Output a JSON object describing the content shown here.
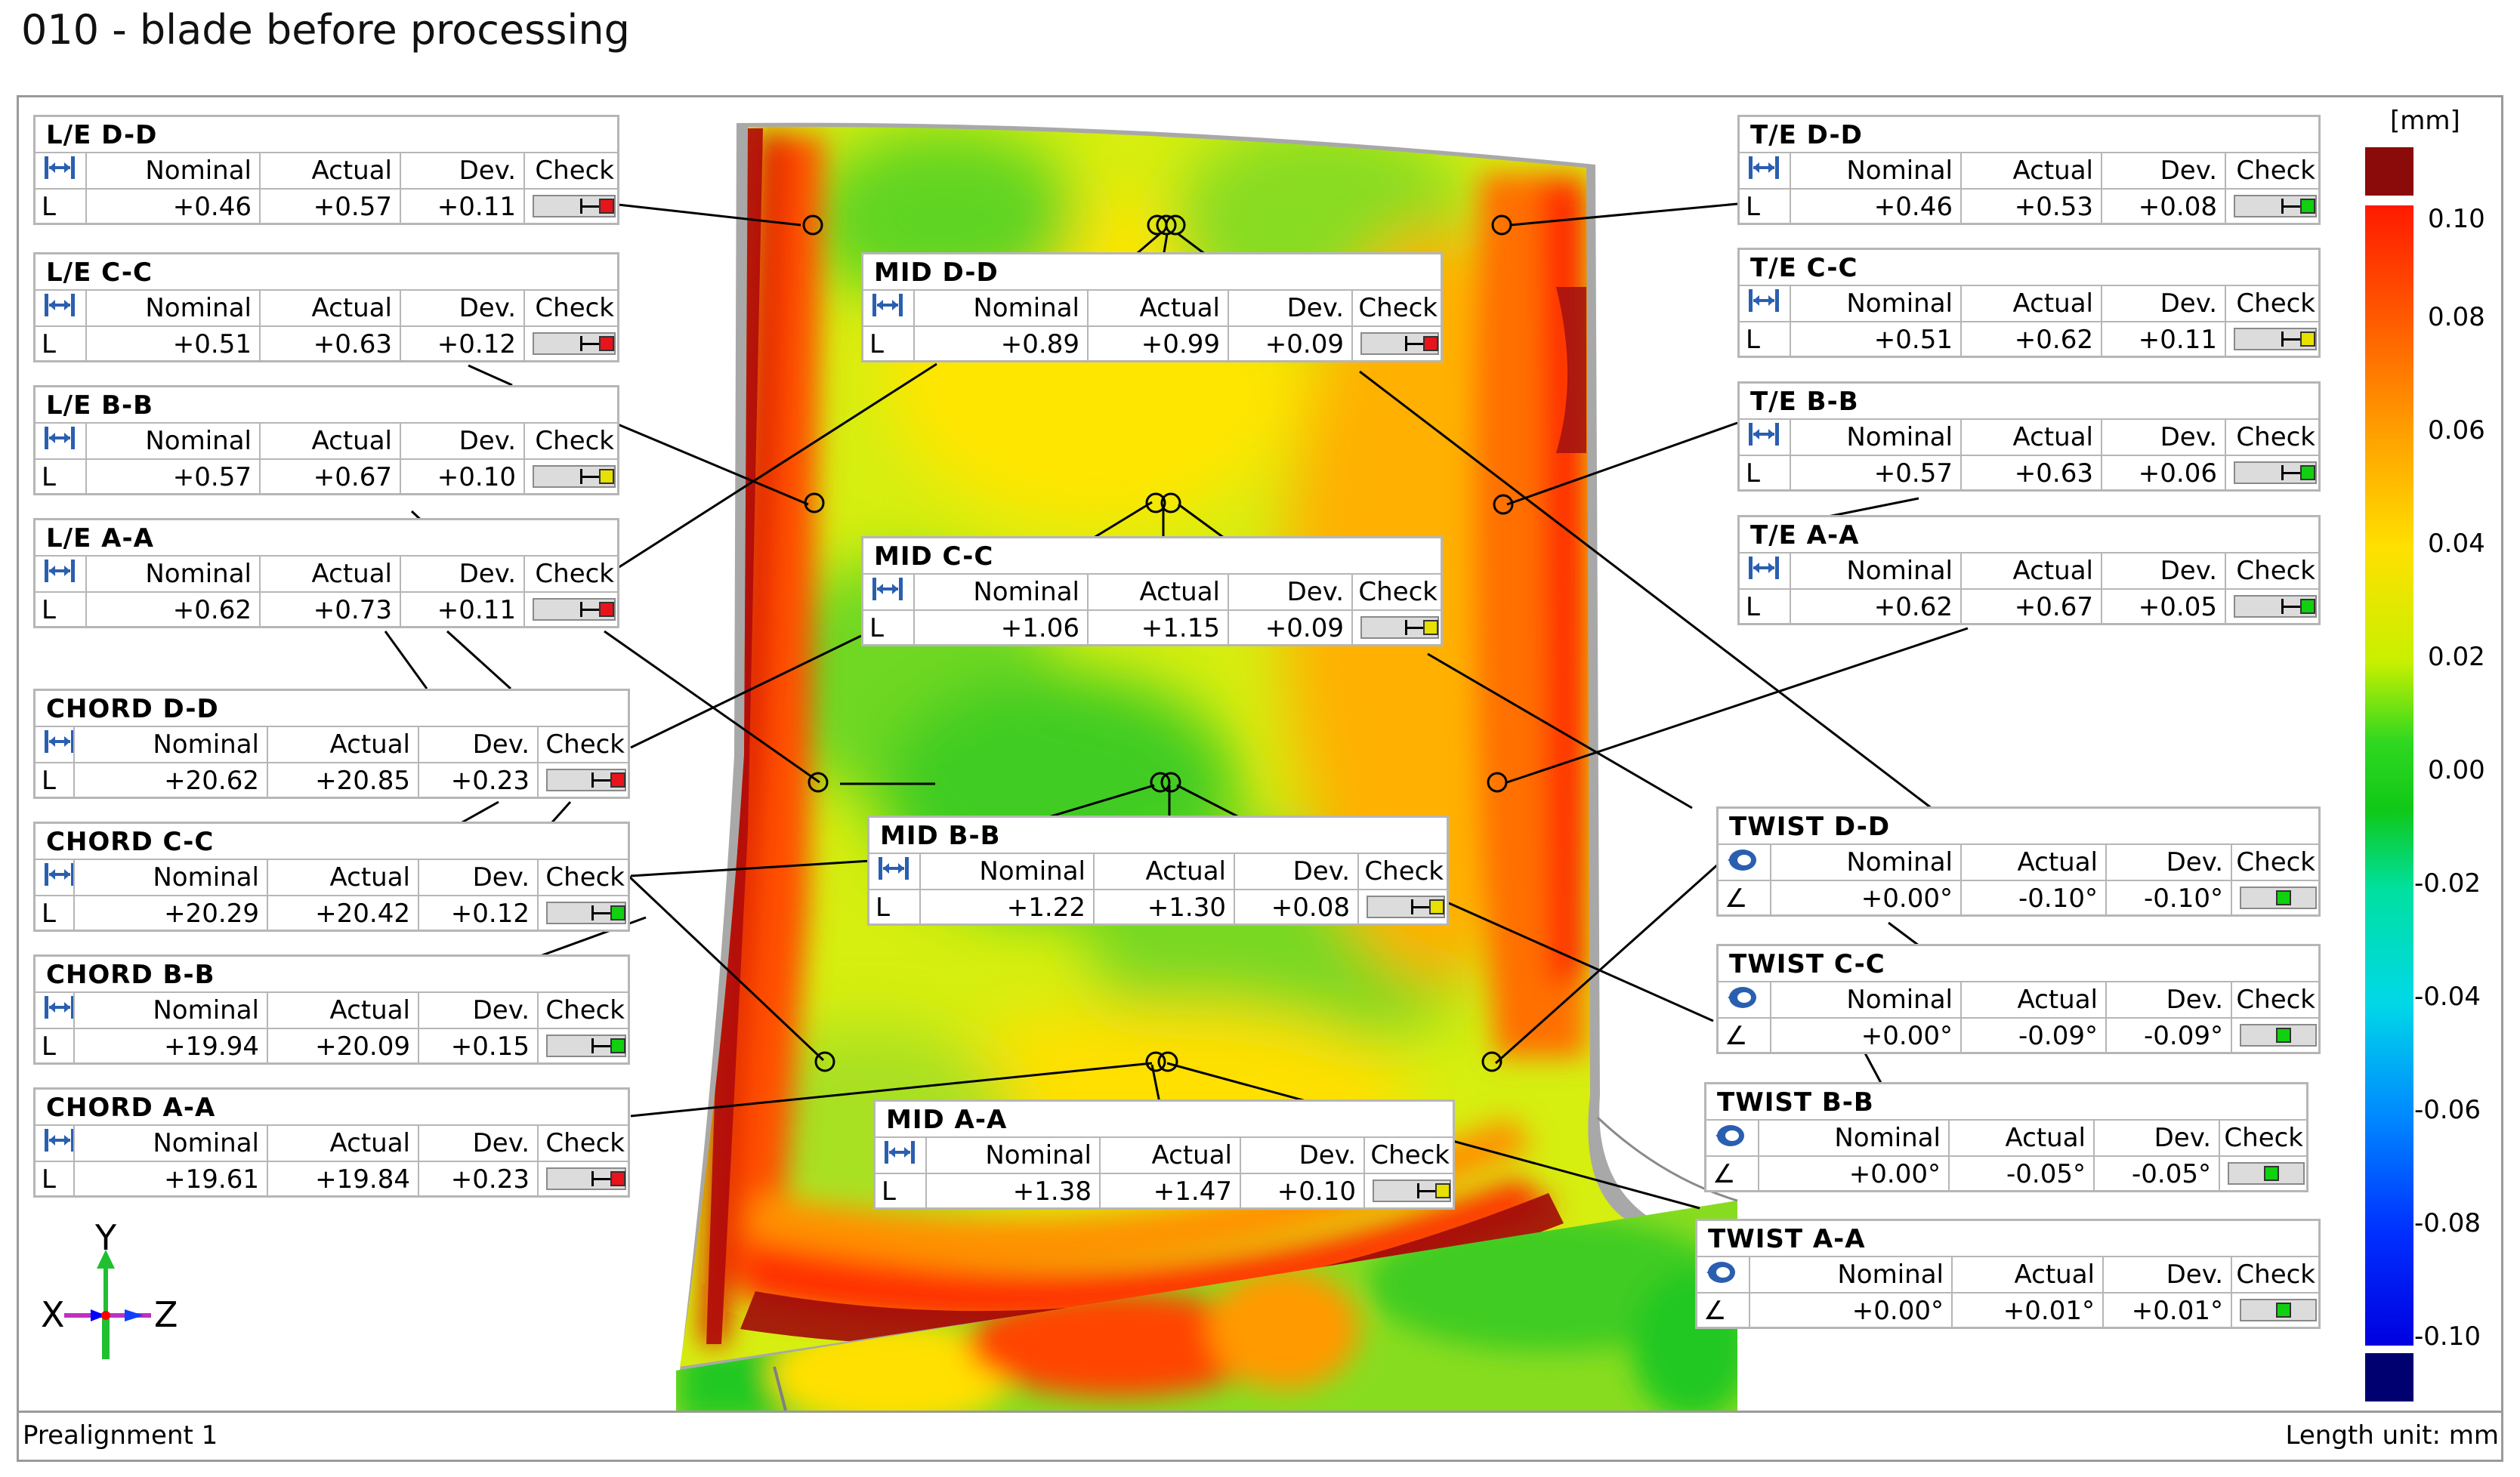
{
  "title": "010 - blade before processing",
  "footer": {
    "alignment": "Prealignment 1",
    "unit": "Length unit: mm"
  },
  "legend": {
    "unit": "[mm]",
    "ticks": [
      "0.10",
      "0.08",
      "0.06",
      "0.04",
      "0.02",
      "0.00",
      "-0.02",
      "-0.04",
      "-0.06",
      "-0.08",
      "-0.10"
    ]
  },
  "axes": {
    "y": "Y",
    "x": "X",
    "z": "Z"
  },
  "columns": {
    "nominal": "Nominal",
    "actual": "Actual",
    "dev": "Dev.",
    "check": "Check"
  },
  "colors": {
    "red": "#e8141c",
    "yellow": "#e8e000",
    "green": "#10d010"
  },
  "panels": [
    {
      "name": "L/E D-D",
      "unit": "L",
      "nominal": "+0.46",
      "actual": "+0.57",
      "dev": "+0.11",
      "status": "red",
      "kind": "length"
    },
    {
      "name": "L/E C-C",
      "unit": "L",
      "nominal": "+0.51",
      "actual": "+0.63",
      "dev": "+0.12",
      "status": "red",
      "kind": "length"
    },
    {
      "name": "L/E B-B",
      "unit": "L",
      "nominal": "+0.57",
      "actual": "+0.67",
      "dev": "+0.10",
      "status": "yellow",
      "kind": "length"
    },
    {
      "name": "L/E A-A",
      "unit": "L",
      "nominal": "+0.62",
      "actual": "+0.73",
      "dev": "+0.11",
      "status": "red",
      "kind": "length"
    },
    {
      "name": "CHORD D-D",
      "unit": "L",
      "nominal": "+20.62",
      "actual": "+20.85",
      "dev": "+0.23",
      "status": "red",
      "kind": "length"
    },
    {
      "name": "CHORD C-C",
      "unit": "L",
      "nominal": "+20.29",
      "actual": "+20.42",
      "dev": "+0.12",
      "status": "green",
      "kind": "length"
    },
    {
      "name": "CHORD B-B",
      "unit": "L",
      "nominal": "+19.94",
      "actual": "+20.09",
      "dev": "+0.15",
      "status": "green",
      "kind": "length"
    },
    {
      "name": "CHORD A-A",
      "unit": "L",
      "nominal": "+19.61",
      "actual": "+19.84",
      "dev": "+0.23",
      "status": "red",
      "kind": "length"
    },
    {
      "name": "MID D-D",
      "unit": "L",
      "nominal": "+0.89",
      "actual": "+0.99",
      "dev": "+0.09",
      "status": "red",
      "kind": "length"
    },
    {
      "name": "MID C-C",
      "unit": "L",
      "nominal": "+1.06",
      "actual": "+1.15",
      "dev": "+0.09",
      "status": "yellow",
      "kind": "length"
    },
    {
      "name": "MID B-B",
      "unit": "L",
      "nominal": "+1.22",
      "actual": "+1.30",
      "dev": "+0.08",
      "status": "yellow",
      "kind": "length"
    },
    {
      "name": "MID A-A",
      "unit": "L",
      "nominal": "+1.38",
      "actual": "+1.47",
      "dev": "+0.10",
      "status": "yellow",
      "kind": "length"
    },
    {
      "name": "T/E D-D",
      "unit": "L",
      "nominal": "+0.46",
      "actual": "+0.53",
      "dev": "+0.08",
      "status": "green",
      "kind": "length"
    },
    {
      "name": "T/E C-C",
      "unit": "L",
      "nominal": "+0.51",
      "actual": "+0.62",
      "dev": "+0.11",
      "status": "yellow",
      "kind": "length"
    },
    {
      "name": "T/E B-B",
      "unit": "L",
      "nominal": "+0.57",
      "actual": "+0.63",
      "dev": "+0.06",
      "status": "green",
      "kind": "length"
    },
    {
      "name": "T/E A-A",
      "unit": "L",
      "nominal": "+0.62",
      "actual": "+0.67",
      "dev": "+0.05",
      "status": "green",
      "kind": "length"
    },
    {
      "name": "TWIST D-D",
      "unit": "∠",
      "nominal": "+0.00°",
      "actual": "-0.10°",
      "dev": "-0.10°",
      "status": "green",
      "kind": "angle"
    },
    {
      "name": "TWIST C-C",
      "unit": "∠",
      "nominal": "+0.00°",
      "actual": "-0.09°",
      "dev": "-0.09°",
      "status": "green",
      "kind": "angle"
    },
    {
      "name": "TWIST B-B",
      "unit": "∠",
      "nominal": "+0.00°",
      "actual": "-0.05°",
      "dev": "-0.05°",
      "status": "green",
      "kind": "angle"
    },
    {
      "name": "TWIST A-A",
      "unit": "∠",
      "nominal": "+0.00°",
      "actual": "+0.01°",
      "dev": "+0.01°",
      "status": "green",
      "kind": "angle"
    }
  ]
}
